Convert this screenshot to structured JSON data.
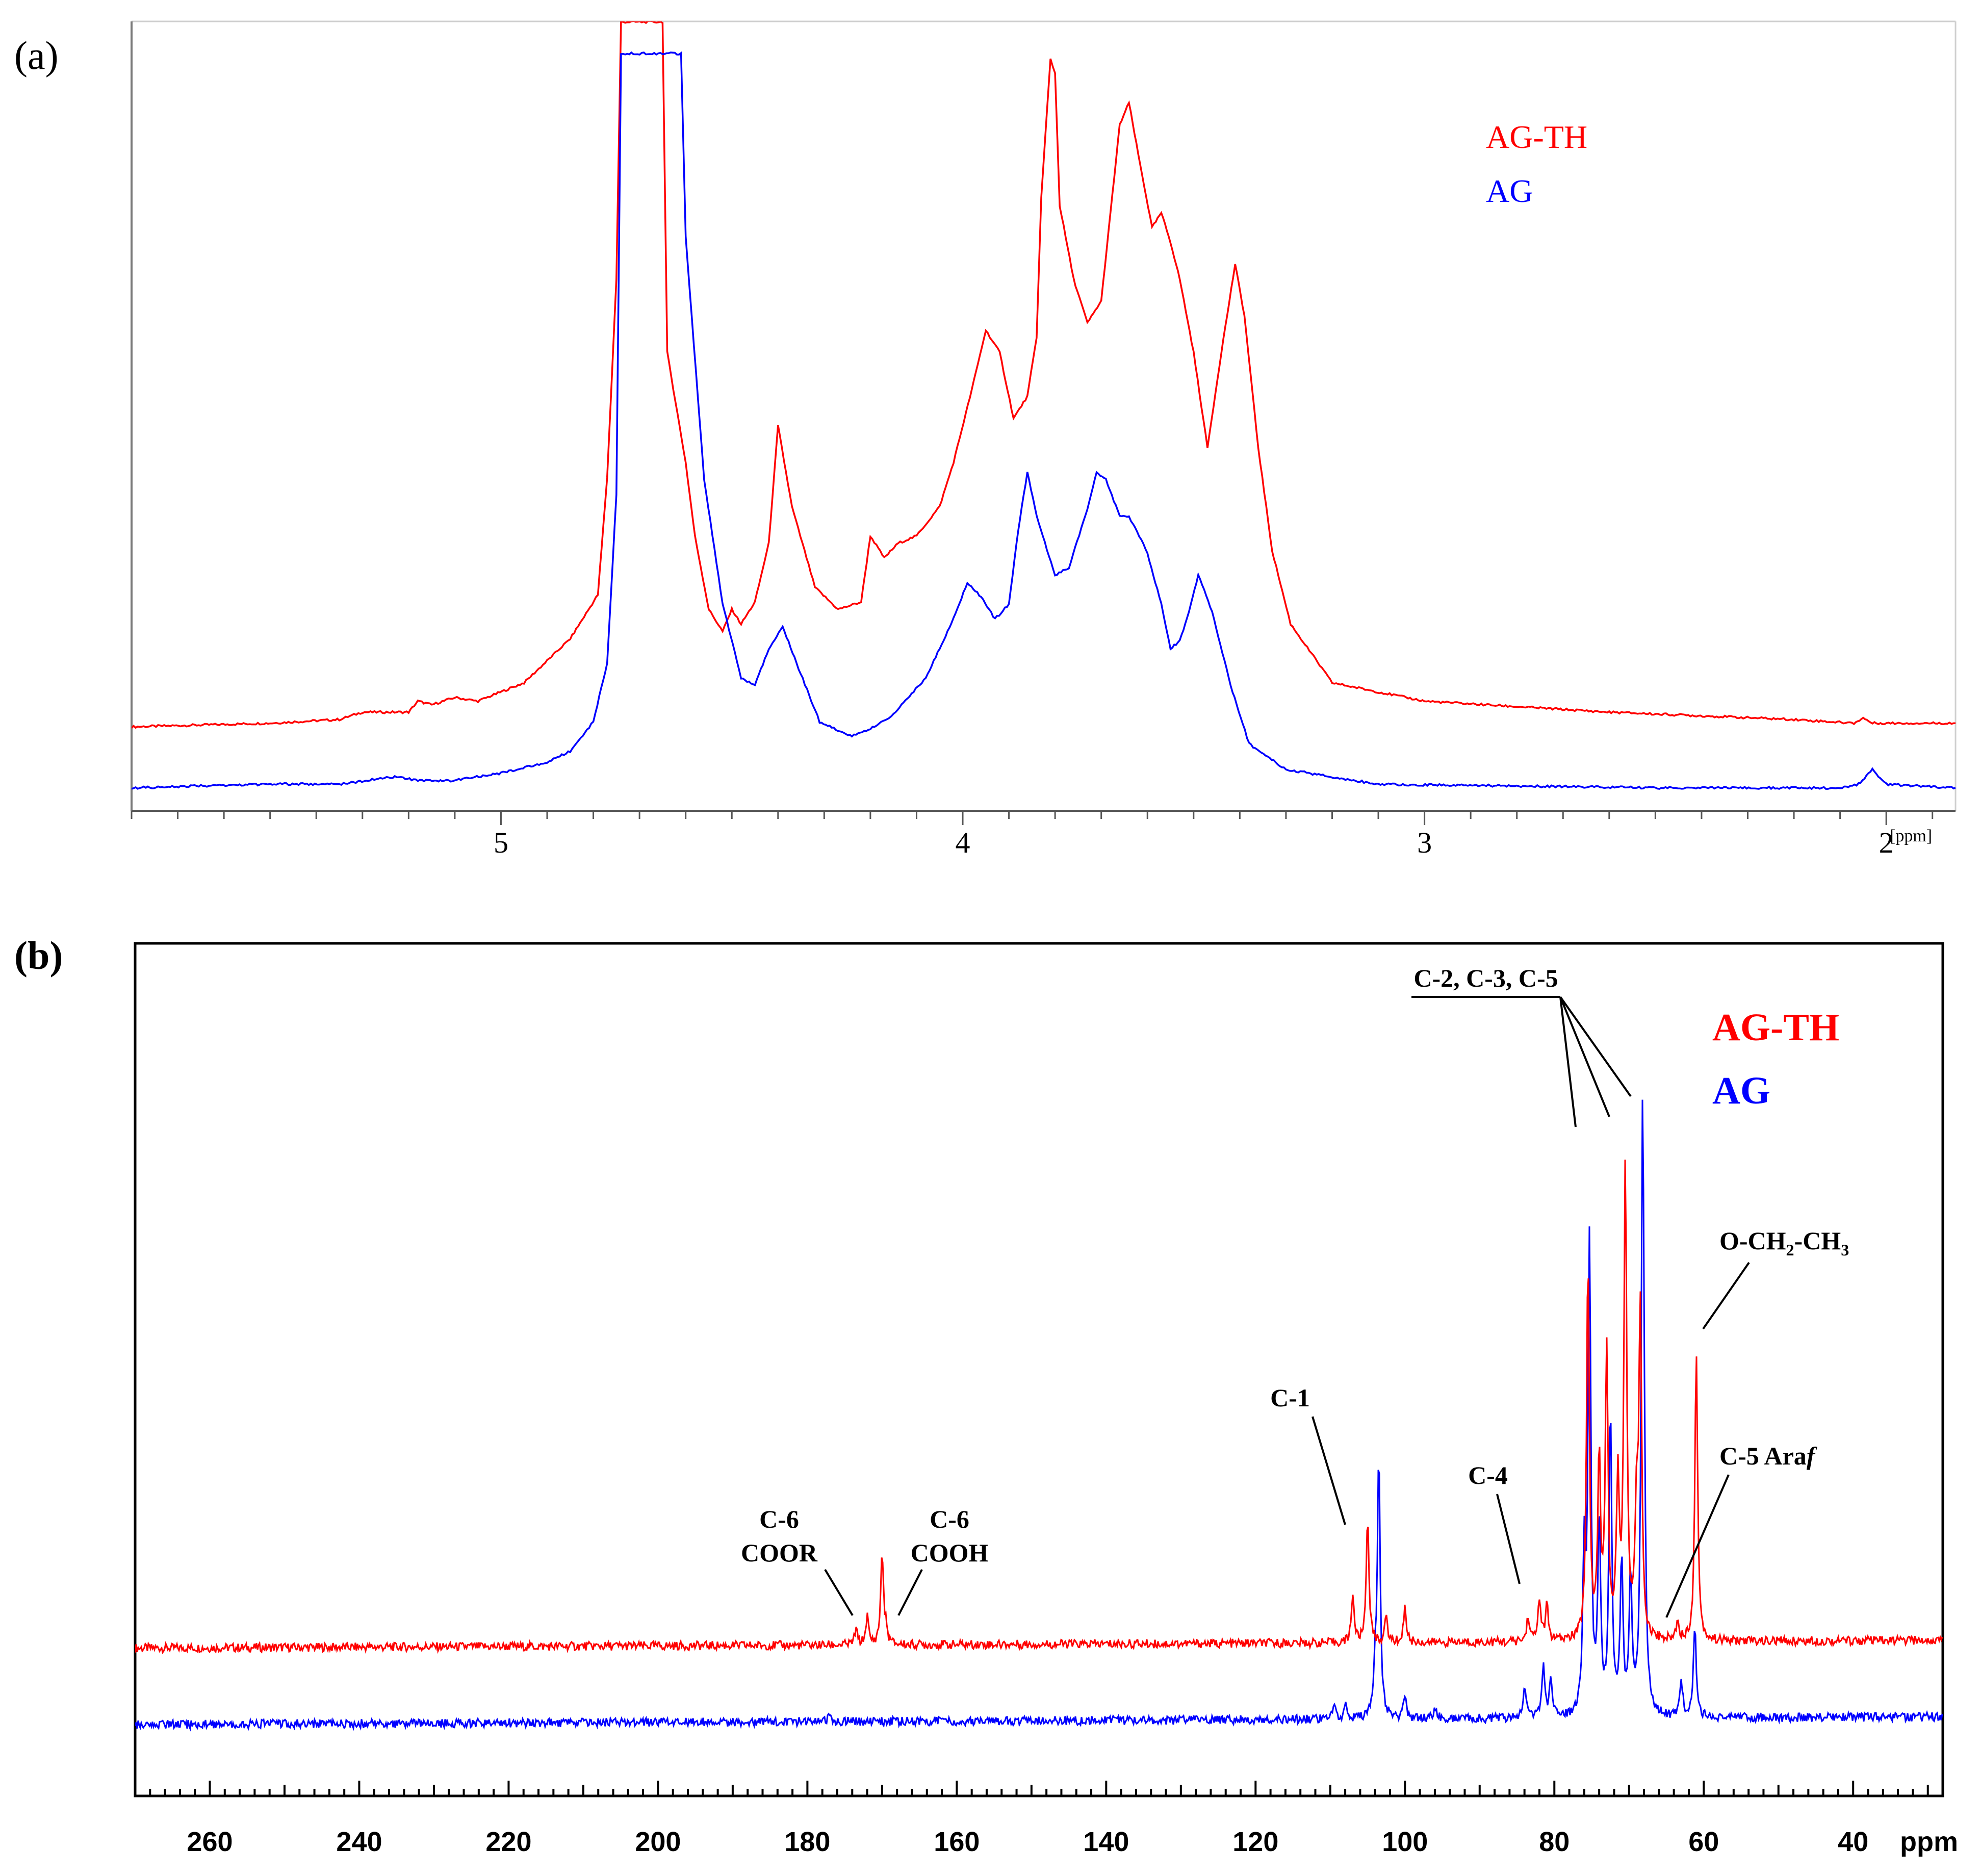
{
  "panels": {
    "a": {
      "label_open": "(",
      "label_letter": "a",
      "label_close": ")"
    },
    "b": {
      "label_open": "(",
      "label_letter": "b",
      "label_close": ")"
    }
  },
  "colors": {
    "agth": "#ff0000",
    "ag": "#0000ff",
    "axis": "#000000"
  },
  "chart_data": [
    {
      "id": "a",
      "type": "line",
      "title": "",
      "xlabel": "[ppm]",
      "ylabel": "",
      "xlim": [
        5.8,
        1.85
      ],
      "x_reversed": true,
      "grid": false,
      "x_ticks": [
        5,
        4,
        3,
        2
      ],
      "x_tick_labels": [
        "5",
        "4",
        "3",
        "2"
      ],
      "legend_position": "top-right",
      "series": [
        {
          "name": "AG-TH",
          "color": "#ff0000",
          "points": [
            [
              5.8,
              0.04
            ],
            [
              5.5,
              0.045
            ],
            [
              5.35,
              0.05
            ],
            [
              5.3,
              0.06
            ],
            [
              5.2,
              0.06
            ],
            [
              5.18,
              0.075
            ],
            [
              5.15,
              0.07
            ],
            [
              5.1,
              0.08
            ],
            [
              5.05,
              0.075
            ],
            [
              4.95,
              0.1
            ],
            [
              4.9,
              0.13
            ],
            [
              4.85,
              0.16
            ],
            [
              4.82,
              0.19
            ],
            [
              4.79,
              0.22
            ],
            [
              4.77,
              0.38
            ],
            [
              4.75,
              0.65
            ],
            [
              4.74,
              1.0
            ],
            [
              4.65,
              1.0
            ],
            [
              4.64,
              0.55
            ],
            [
              4.6,
              0.4
            ],
            [
              4.58,
              0.3
            ],
            [
              4.55,
              0.2
            ],
            [
              4.52,
              0.17
            ],
            [
              4.5,
              0.2
            ],
            [
              4.48,
              0.18
            ],
            [
              4.45,
              0.21
            ],
            [
              4.42,
              0.29
            ],
            [
              4.4,
              0.45
            ],
            [
              4.37,
              0.34
            ],
            [
              4.32,
              0.23
            ],
            [
              4.27,
              0.2
            ],
            [
              4.22,
              0.21
            ],
            [
              4.2,
              0.3
            ],
            [
              4.17,
              0.27
            ],
            [
              4.14,
              0.29
            ],
            [
              4.1,
              0.3
            ],
            [
              4.05,
              0.34
            ],
            [
              4.02,
              0.4
            ],
            [
              3.98,
              0.5
            ],
            [
              3.95,
              0.58
            ],
            [
              3.92,
              0.55
            ],
            [
              3.89,
              0.46
            ],
            [
              3.86,
              0.49
            ],
            [
              3.84,
              0.57
            ],
            [
              3.83,
              0.76
            ],
            [
              3.81,
              0.95
            ],
            [
              3.8,
              0.93
            ],
            [
              3.79,
              0.75
            ],
            [
              3.76,
              0.65
            ],
            [
              3.73,
              0.59
            ],
            [
              3.7,
              0.62
            ],
            [
              3.68,
              0.74
            ],
            [
              3.66,
              0.86
            ],
            [
              3.64,
              0.89
            ],
            [
              3.62,
              0.82
            ],
            [
              3.59,
              0.72
            ],
            [
              3.57,
              0.74
            ],
            [
              3.55,
              0.7
            ],
            [
              3.53,
              0.65
            ],
            [
              3.5,
              0.55
            ],
            [
              3.47,
              0.42
            ],
            [
              3.44,
              0.55
            ],
            [
              3.41,
              0.67
            ],
            [
              3.39,
              0.6
            ],
            [
              3.36,
              0.42
            ],
            [
              3.33,
              0.28
            ],
            [
              3.29,
              0.18
            ],
            [
              3.2,
              0.1
            ],
            [
              3.0,
              0.075
            ],
            [
              2.6,
              0.06
            ],
            [
              2.2,
              0.05
            ],
            [
              2.07,
              0.045
            ],
            [
              2.05,
              0.052
            ],
            [
              2.03,
              0.045
            ],
            [
              1.85,
              0.045
            ]
          ]
        },
        {
          "name": "AG",
          "color": "#0000ff",
          "points": [
            [
              5.8,
              0.0
            ],
            [
              5.5,
              0.005
            ],
            [
              5.35,
              0.005
            ],
            [
              5.23,
              0.015
            ],
            [
              5.18,
              0.01
            ],
            [
              5.1,
              0.01
            ],
            [
              5.0,
              0.02
            ],
            [
              4.9,
              0.035
            ],
            [
              4.85,
              0.05
            ],
            [
              4.8,
              0.09
            ],
            [
              4.77,
              0.17
            ],
            [
              4.75,
              0.4
            ],
            [
              4.74,
              1.0
            ],
            [
              4.61,
              1.0
            ],
            [
              4.6,
              0.75
            ],
            [
              4.56,
              0.42
            ],
            [
              4.52,
              0.25
            ],
            [
              4.48,
              0.15
            ],
            [
              4.45,
              0.14
            ],
            [
              4.42,
              0.19
            ],
            [
              4.39,
              0.22
            ],
            [
              4.36,
              0.17
            ],
            [
              4.31,
              0.09
            ],
            [
              4.24,
              0.07
            ],
            [
              4.2,
              0.08
            ],
            [
              4.15,
              0.1
            ],
            [
              4.08,
              0.15
            ],
            [
              4.02,
              0.23
            ],
            [
              3.99,
              0.28
            ],
            [
              3.96,
              0.26
            ],
            [
              3.93,
              0.23
            ],
            [
              3.9,
              0.25
            ],
            [
              3.88,
              0.35
            ],
            [
              3.86,
              0.43
            ],
            [
              3.84,
              0.37
            ],
            [
              3.8,
              0.29
            ],
            [
              3.77,
              0.3
            ],
            [
              3.73,
              0.38
            ],
            [
              3.71,
              0.43
            ],
            [
              3.69,
              0.42
            ],
            [
              3.66,
              0.37
            ],
            [
              3.64,
              0.37
            ],
            [
              3.6,
              0.32
            ],
            [
              3.57,
              0.25
            ],
            [
              3.55,
              0.19
            ],
            [
              3.53,
              0.2
            ],
            [
              3.51,
              0.24
            ],
            [
              3.49,
              0.29
            ],
            [
              3.46,
              0.24
            ],
            [
              3.42,
              0.14
            ],
            [
              3.38,
              0.06
            ],
            [
              3.3,
              0.025
            ],
            [
              3.1,
              0.005
            ],
            [
              2.5,
              0.0
            ],
            [
              2.1,
              0.0
            ],
            [
              2.06,
              0.005
            ],
            [
              2.03,
              0.025
            ],
            [
              2.0,
              0.005
            ],
            [
              1.85,
              0.0
            ]
          ]
        }
      ]
    },
    {
      "id": "b",
      "type": "line",
      "title": "",
      "xlabel": "ppm",
      "ylabel": "",
      "xlim": [
        270,
        28
      ],
      "x_reversed": true,
      "grid": false,
      "x_ticks": [
        260,
        240,
        220,
        200,
        180,
        160,
        140,
        120,
        100,
        80,
        60,
        40
      ],
      "x_tick_labels": [
        "260",
        "240",
        "220",
        "200",
        "180",
        "160",
        "140",
        "120",
        "100",
        "80",
        "60",
        "40"
      ],
      "legend_position": "top-right",
      "annotations": [
        "C-6",
        "COOR",
        "C-6",
        "COOH",
        "C-1",
        "C-4",
        "C-2, C-3, C-5",
        "O-CH",
        "2",
        "-CH",
        "3",
        "C-5 Ara",
        "f"
      ],
      "series": [
        {
          "name": "AG-TH",
          "color": "#ff0000",
          "baseline": 0.0,
          "peaks": [
            [
              173.5,
              0.06
            ],
            [
              172,
              0.11
            ],
            [
              170,
              0.36
            ],
            [
              169.5,
              0.05
            ],
            [
              107,
              0.19
            ],
            [
              105,
              0.49
            ],
            [
              102.5,
              0.1
            ],
            [
              100,
              0.14
            ],
            [
              83.5,
              0.1
            ],
            [
              82,
              0.17
            ],
            [
              81,
              0.14
            ],
            [
              75.5,
              1.5
            ],
            [
              74,
              0.7
            ],
            [
              73,
              1.13
            ],
            [
              71.5,
              0.6
            ],
            [
              70.5,
              1.87
            ],
            [
              69,
              0.45
            ],
            [
              68.5,
              1.3
            ],
            [
              63.5,
              0.08
            ],
            [
              61,
              1.13
            ]
          ]
        },
        {
          "name": "AG",
          "color": "#0000ff",
          "baseline": -0.2,
          "peaks": [
            [
              177,
              0.04
            ],
            [
              109.5,
              0.06
            ],
            [
              108,
              0.05
            ],
            [
              104,
              0.18
            ],
            [
              103.5,
              1.02
            ],
            [
              100,
              0.1
            ],
            [
              96,
              0.05
            ],
            [
              84,
              0.13
            ],
            [
              81.5,
              0.2
            ],
            [
              80.5,
              0.16
            ],
            [
              76,
              0.6
            ],
            [
              75.3,
              1.86
            ],
            [
              74,
              0.75
            ],
            [
              72.5,
              1.2
            ],
            [
              71,
              0.6
            ],
            [
              69.8,
              0.55
            ],
            [
              68.2,
              2.13
            ],
            [
              68.0,
              0.5
            ],
            [
              63,
              0.14
            ],
            [
              61.2,
              0.36
            ]
          ]
        }
      ]
    }
  ]
}
